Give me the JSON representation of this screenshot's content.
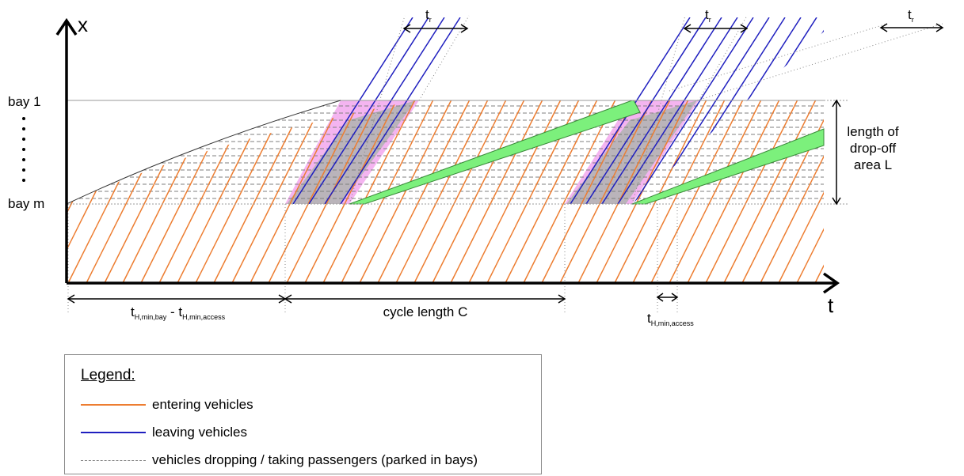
{
  "axes": {
    "x_label": "x",
    "t_label": "t",
    "bay_top": "bay 1",
    "bay_bottom": "bay m",
    "length_label": [
      "length of",
      "drop-off",
      "area L"
    ]
  },
  "annotations": {
    "tr_base": "t",
    "tr_sub": "r",
    "th_span_base": "t",
    "th_span_sub1": "H,min,bay",
    "th_span_mid": " - t",
    "th_span_sub2": "H,min,access",
    "cycle_label": "cycle length C",
    "th_access_base": "t",
    "th_access_sub": "H,min,access"
  },
  "legend": {
    "title": "Legend:",
    "items": [
      {
        "label": "entering vehicles",
        "color": "#ed7d31",
        "style": "solid"
      },
      {
        "label": "leaving vehicles",
        "color": "#1f1fbf",
        "style": "solid"
      },
      {
        "label": "vehicles dropping / taking passengers (parked in bays)",
        "color": "#7f7f7f",
        "style": "dashed"
      }
    ]
  },
  "colors": {
    "entering": "#ed7d31",
    "leaving": "#1f1fbf",
    "parked": "#7f7f7f",
    "green_band": "#7cf07c",
    "pink_zone": "#f4b4f0",
    "gray_zone": "#b4b4b4"
  }
}
